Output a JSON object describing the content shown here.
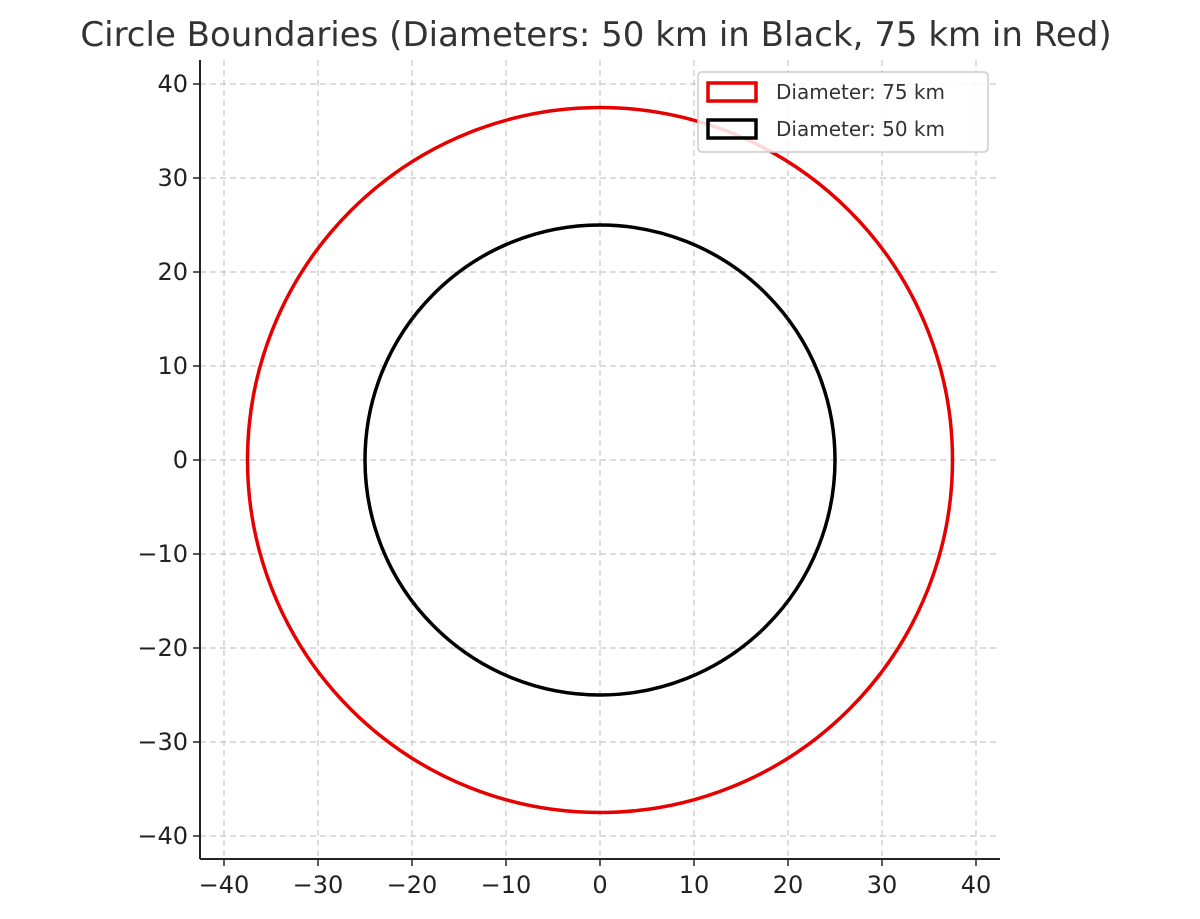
{
  "chart_data": {
    "type": "line",
    "title": "Circle Boundaries (Diameters: 50 km in Black, 75 km in Red)",
    "xlabel": "",
    "ylabel": "",
    "xlim": [
      -42.5,
      42.5
    ],
    "ylim": [
      -42.5,
      42.5
    ],
    "xticks": [
      -40,
      -30,
      -20,
      -10,
      0,
      10,
      20,
      30,
      40
    ],
    "yticks": [
      -40,
      -30,
      -20,
      -10,
      0,
      10,
      20,
      30,
      40
    ],
    "xtick_labels": [
      "−40",
      "−30",
      "−20",
      "−10",
      "0",
      "10",
      "20",
      "30",
      "40"
    ],
    "ytick_labels": [
      "−40",
      "−30",
      "−20",
      "−10",
      "0",
      "10",
      "20",
      "30",
      "40"
    ],
    "grid": true,
    "grid_style": "dashed",
    "legend_position": "top-right",
    "series": [
      {
        "name": "Diameter: 75 km",
        "shape": "circle",
        "center": [
          0,
          0
        ],
        "diameter": 75,
        "radius": 37.5,
        "color": "#e60000"
      },
      {
        "name": "Diameter: 50 km",
        "shape": "circle",
        "center": [
          0,
          0
        ],
        "diameter": 50,
        "radius": 25,
        "color": "#000000"
      }
    ]
  }
}
